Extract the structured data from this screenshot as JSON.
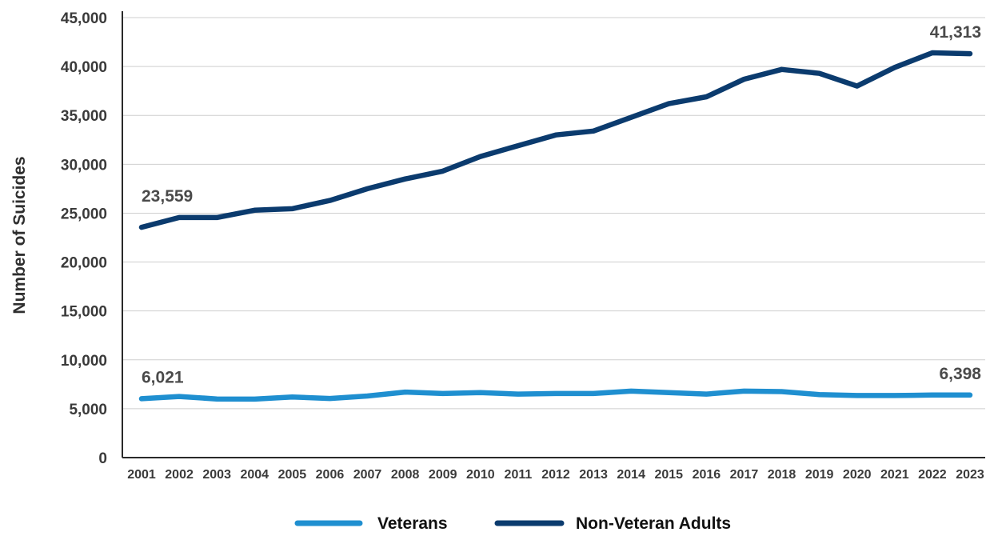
{
  "chart_data": {
    "type": "line",
    "title": "",
    "xlabel": "",
    "ylabel": "Number of Suicides",
    "ylim": [
      0,
      45000
    ],
    "y_ticks": [
      0,
      5000,
      10000,
      15000,
      20000,
      25000,
      30000,
      35000,
      40000,
      45000
    ],
    "y_tick_labels": [
      "0",
      "5,000",
      "10,000",
      "15,000",
      "20,000",
      "25,000",
      "30,000",
      "35,000",
      "40,000",
      "45,000"
    ],
    "grid": "horizontal",
    "legend_placement": "bottom-center",
    "x": [
      "2001",
      "2002",
      "2003",
      "2004",
      "2005",
      "2006",
      "2007",
      "2008",
      "2009",
      "2010",
      "2011",
      "2012",
      "2013",
      "2014",
      "2015",
      "2016",
      "2017",
      "2018",
      "2019",
      "2020",
      "2021",
      "2022",
      "2023"
    ],
    "series": [
      {
        "name": "Veterans",
        "color": "#1f8fd0",
        "values": [
          6021,
          6250,
          6000,
          5980,
          6200,
          6050,
          6300,
          6700,
          6550,
          6650,
          6500,
          6550,
          6550,
          6800,
          6650,
          6500,
          6800,
          6750,
          6450,
          6350,
          6350,
          6400,
          6398
        ]
      },
      {
        "name": "Non-Veteran Adults",
        "color": "#0b3b6e",
        "values": [
          23559,
          24550,
          24550,
          25300,
          25450,
          26300,
          27500,
          28500,
          29300,
          30800,
          31900,
          33000,
          33400,
          34800,
          36200,
          36900,
          38700,
          39700,
          39300,
          38000,
          39900,
          41400,
          41313
        ]
      }
    ],
    "annotations": [
      {
        "series": 1,
        "index": 0,
        "text": "23,559"
      },
      {
        "series": 1,
        "index": 22,
        "text": "41,313"
      },
      {
        "series": 0,
        "index": 0,
        "text": "6,021"
      },
      {
        "series": 0,
        "index": 22,
        "text": "6,398"
      }
    ]
  }
}
